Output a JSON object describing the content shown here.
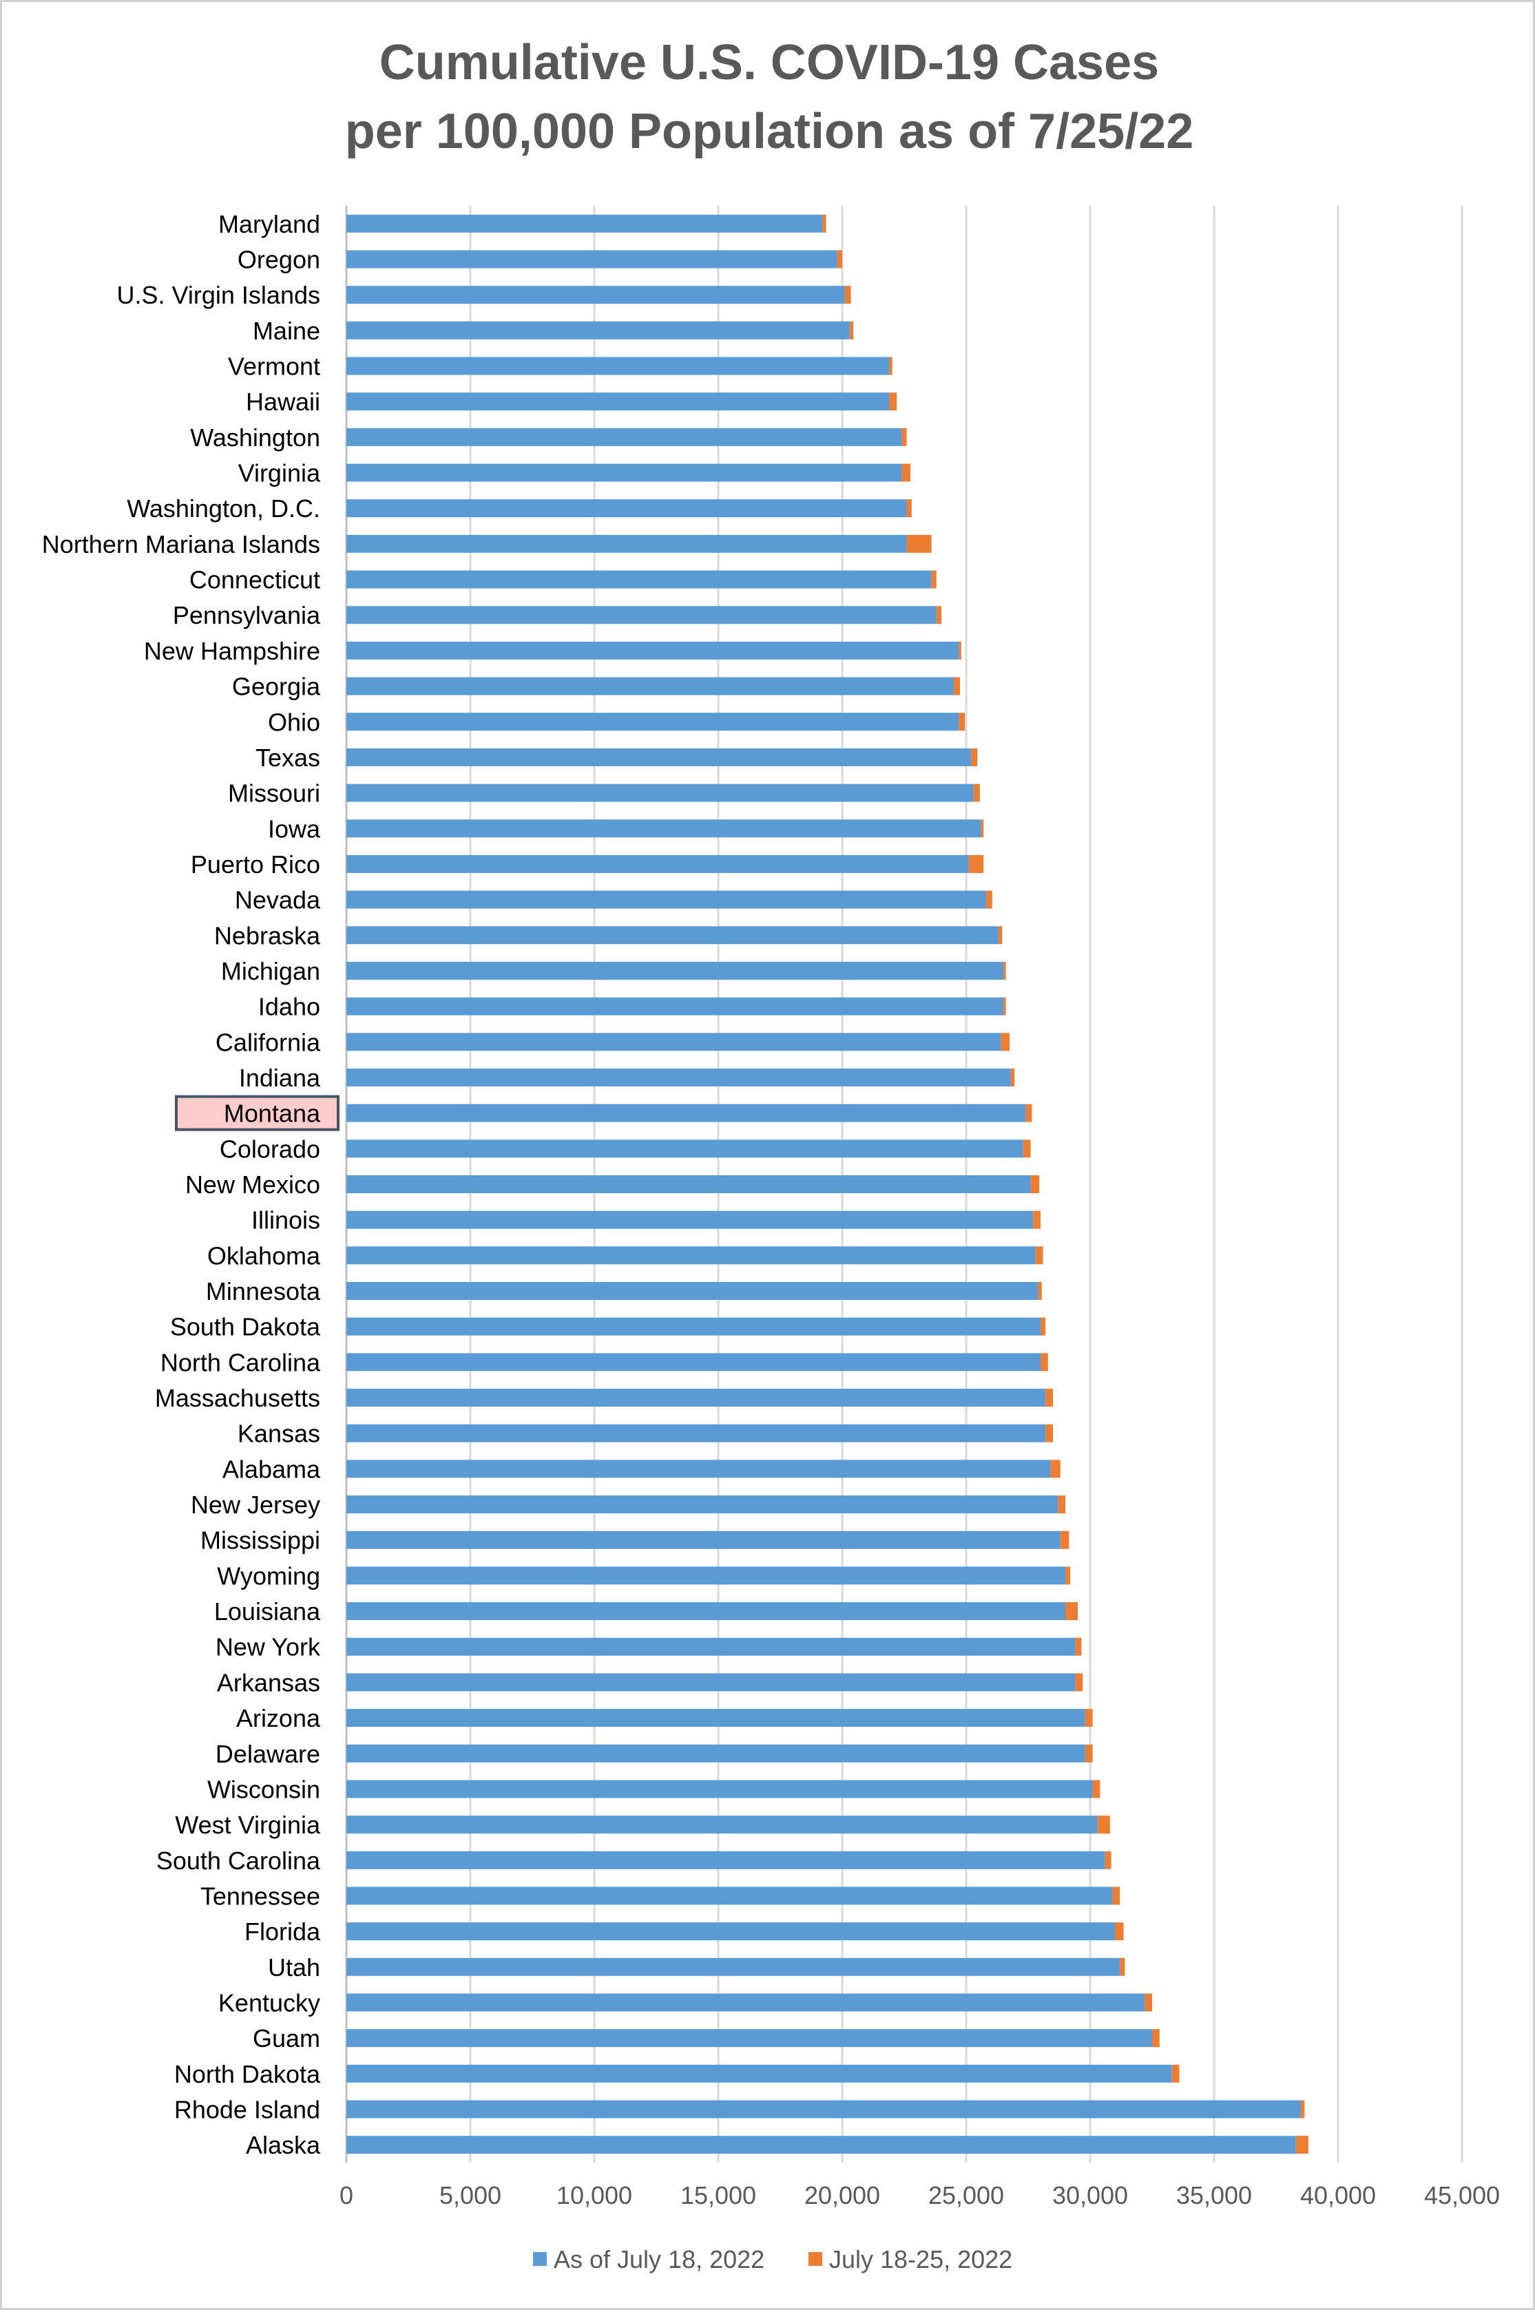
{
  "chart_data": {
    "type": "bar",
    "orientation": "horizontal",
    "stacked": true,
    "title": "Cumulative U.S. COVID-19 Cases per 100,000 Population as of 7/25/22",
    "title_lines": [
      "Cumulative U.S. COVID-19 Cases",
      "per 100,000 Population as of 7/25/22"
    ],
    "xlim": [
      0,
      45000
    ],
    "x_ticks": [
      0,
      5000,
      10000,
      15000,
      20000,
      25000,
      30000,
      35000,
      40000,
      45000
    ],
    "x_tick_labels": [
      "0",
      "5,000",
      "10,000",
      "15,000",
      "20,000",
      "25,000",
      "30,000",
      "35,000",
      "40,000",
      "45,000"
    ],
    "grid": "vertical",
    "legend": "bottom",
    "highlighted_category": "Montana",
    "highlight_colors": {
      "fill": "#ffcccc",
      "border": "#44546a"
    },
    "categories": [
      "Maryland",
      "Oregon",
      "U.S. Virgin Islands",
      "Maine",
      "Vermont",
      "Hawaii",
      "Washington",
      "Virginia",
      "Washington, D.C.",
      "Northern Mariana Islands",
      "Connecticut",
      "Pennsylvania",
      "New Hampshire",
      "Georgia",
      "Ohio",
      "Texas",
      "Missouri",
      "Iowa",
      "Puerto Rico",
      "Nevada",
      "Nebraska",
      "Michigan",
      "Idaho",
      "California",
      "Indiana",
      "Montana",
      "Colorado",
      "New Mexico",
      "Illinois",
      "Oklahoma",
      "Minnesota",
      "South Dakota",
      "North Carolina",
      "Massachusetts",
      "Kansas",
      "Alabama",
      "New Jersey",
      "Mississippi",
      "Wyoming",
      "Louisiana",
      "New York",
      "Arkansas",
      "Arizona",
      "Delaware",
      "Wisconsin",
      "West Virginia",
      "South Carolina",
      "Tennessee",
      "Florida",
      "Utah",
      "Kentucky",
      "Guam",
      "North Dakota",
      "Rhode Island",
      "Alaska"
    ],
    "series": [
      {
        "name": "As of July 18, 2022",
        "color": "#5b9bd5",
        "values": [
          19200,
          19800,
          20100,
          20300,
          21900,
          21900,
          22400,
          22400,
          22600,
          22600,
          23600,
          23800,
          24700,
          24500,
          24700,
          25200,
          25300,
          25600,
          25100,
          25800,
          26300,
          26500,
          26500,
          26400,
          26800,
          27400,
          27300,
          27600,
          27700,
          27800,
          27900,
          28000,
          28000,
          28200,
          28200,
          28400,
          28700,
          28800,
          29000,
          29000,
          29400,
          29400,
          29800,
          29800,
          30100,
          30300,
          30600,
          30900,
          31000,
          31200,
          32200,
          32500,
          33300,
          38500,
          38300
        ]
      },
      {
        "name": "July 18-25, 2022",
        "color": "#ed7d31",
        "values": [
          150,
          200,
          250,
          150,
          120,
          300,
          200,
          350,
          200,
          1000,
          200,
          200,
          100,
          250,
          250,
          250,
          250,
          100,
          600,
          250,
          150,
          100,
          100,
          350,
          150,
          250,
          300,
          350,
          300,
          300,
          150,
          200,
          300,
          300,
          300,
          400,
          300,
          350,
          200,
          500,
          250,
          300,
          300,
          300,
          300,
          500,
          250,
          300,
          350,
          200,
          300,
          300,
          300,
          150,
          500
        ]
      }
    ]
  }
}
